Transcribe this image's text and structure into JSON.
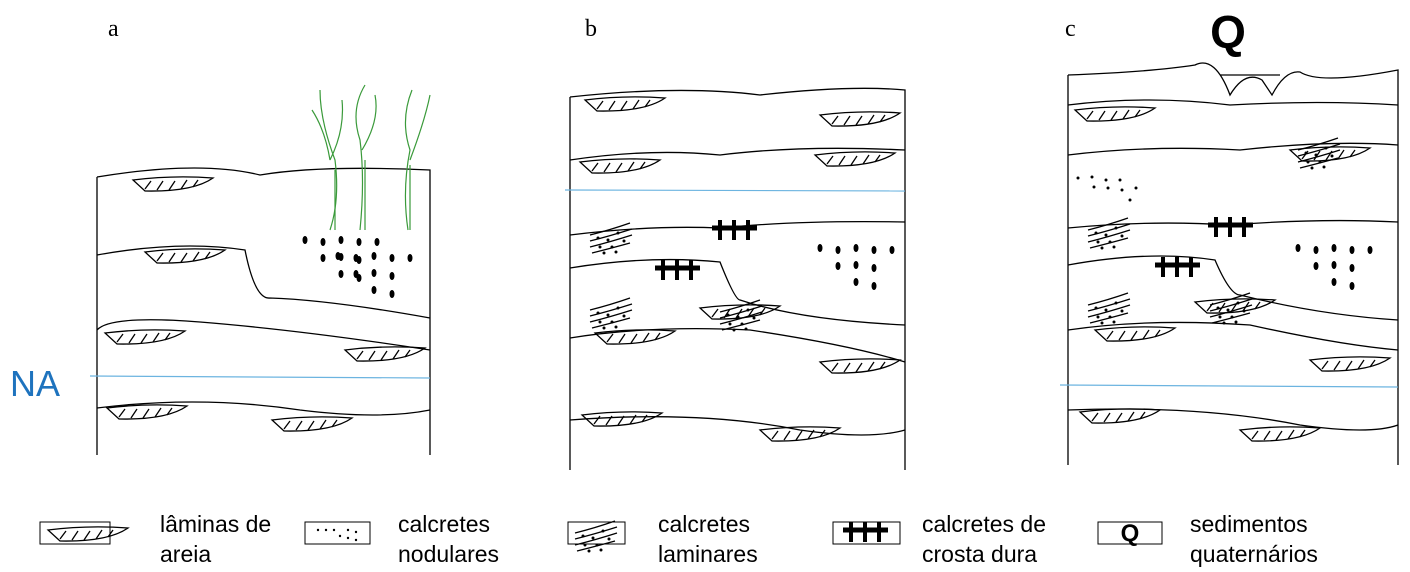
{
  "panels": [
    {
      "label": "a"
    },
    {
      "label": "b"
    },
    {
      "label": "c"
    }
  ],
  "annotations": {
    "water_level": "NA",
    "quaternary": "Q"
  },
  "legend": [
    {
      "lines": [
        "lâminas de",
        "areia"
      ]
    },
    {
      "lines": [
        "calcretes",
        "nodulares"
      ]
    },
    {
      "lines": [
        "calcretes",
        "laminares"
      ]
    },
    {
      "lines": [
        "calcretes de",
        "crosta dura"
      ]
    },
    {
      "symbol": "Q",
      "lines": [
        "sedimentos",
        "quaternários"
      ]
    }
  ]
}
